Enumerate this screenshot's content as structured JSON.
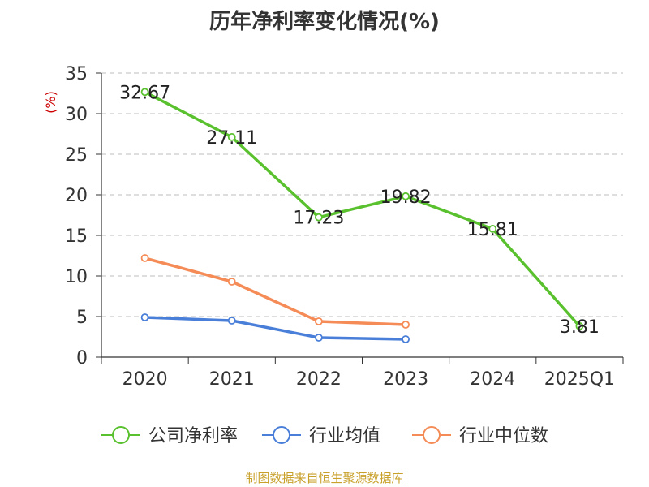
{
  "title": "历年净利率变化情况(%)",
  "source": "制图数据来自恒生聚源数据库",
  "chart_data": {
    "type": "line",
    "title": "历年净利率变化情况(%)",
    "ylabel": "(%)",
    "xlabel": "",
    "categories": [
      "2020",
      "2021",
      "2022",
      "2023",
      "2024",
      "2025Q1"
    ],
    "ylim": [
      0,
      35
    ],
    "yticks": [
      0,
      5,
      10,
      15,
      20,
      25,
      30,
      35
    ],
    "grid": true,
    "legend_position": "bottom",
    "series": [
      {
        "name": "公司净利率",
        "color": "#5ac12e",
        "values": [
          32.67,
          27.11,
          17.23,
          19.82,
          15.81,
          3.81
        ],
        "labels": [
          "32.67",
          "27.11",
          "17.23",
          "19.82",
          "15.81",
          "3.81"
        ]
      },
      {
        "name": "行业均值",
        "color": "#4a7fd9",
        "values": [
          4.9,
          4.5,
          2.4,
          2.2,
          null,
          null
        ],
        "labels": []
      },
      {
        "name": "行业中位数",
        "color": "#f58b56",
        "values": [
          12.2,
          9.3,
          4.4,
          4.0,
          null,
          null
        ],
        "labels": []
      }
    ]
  }
}
